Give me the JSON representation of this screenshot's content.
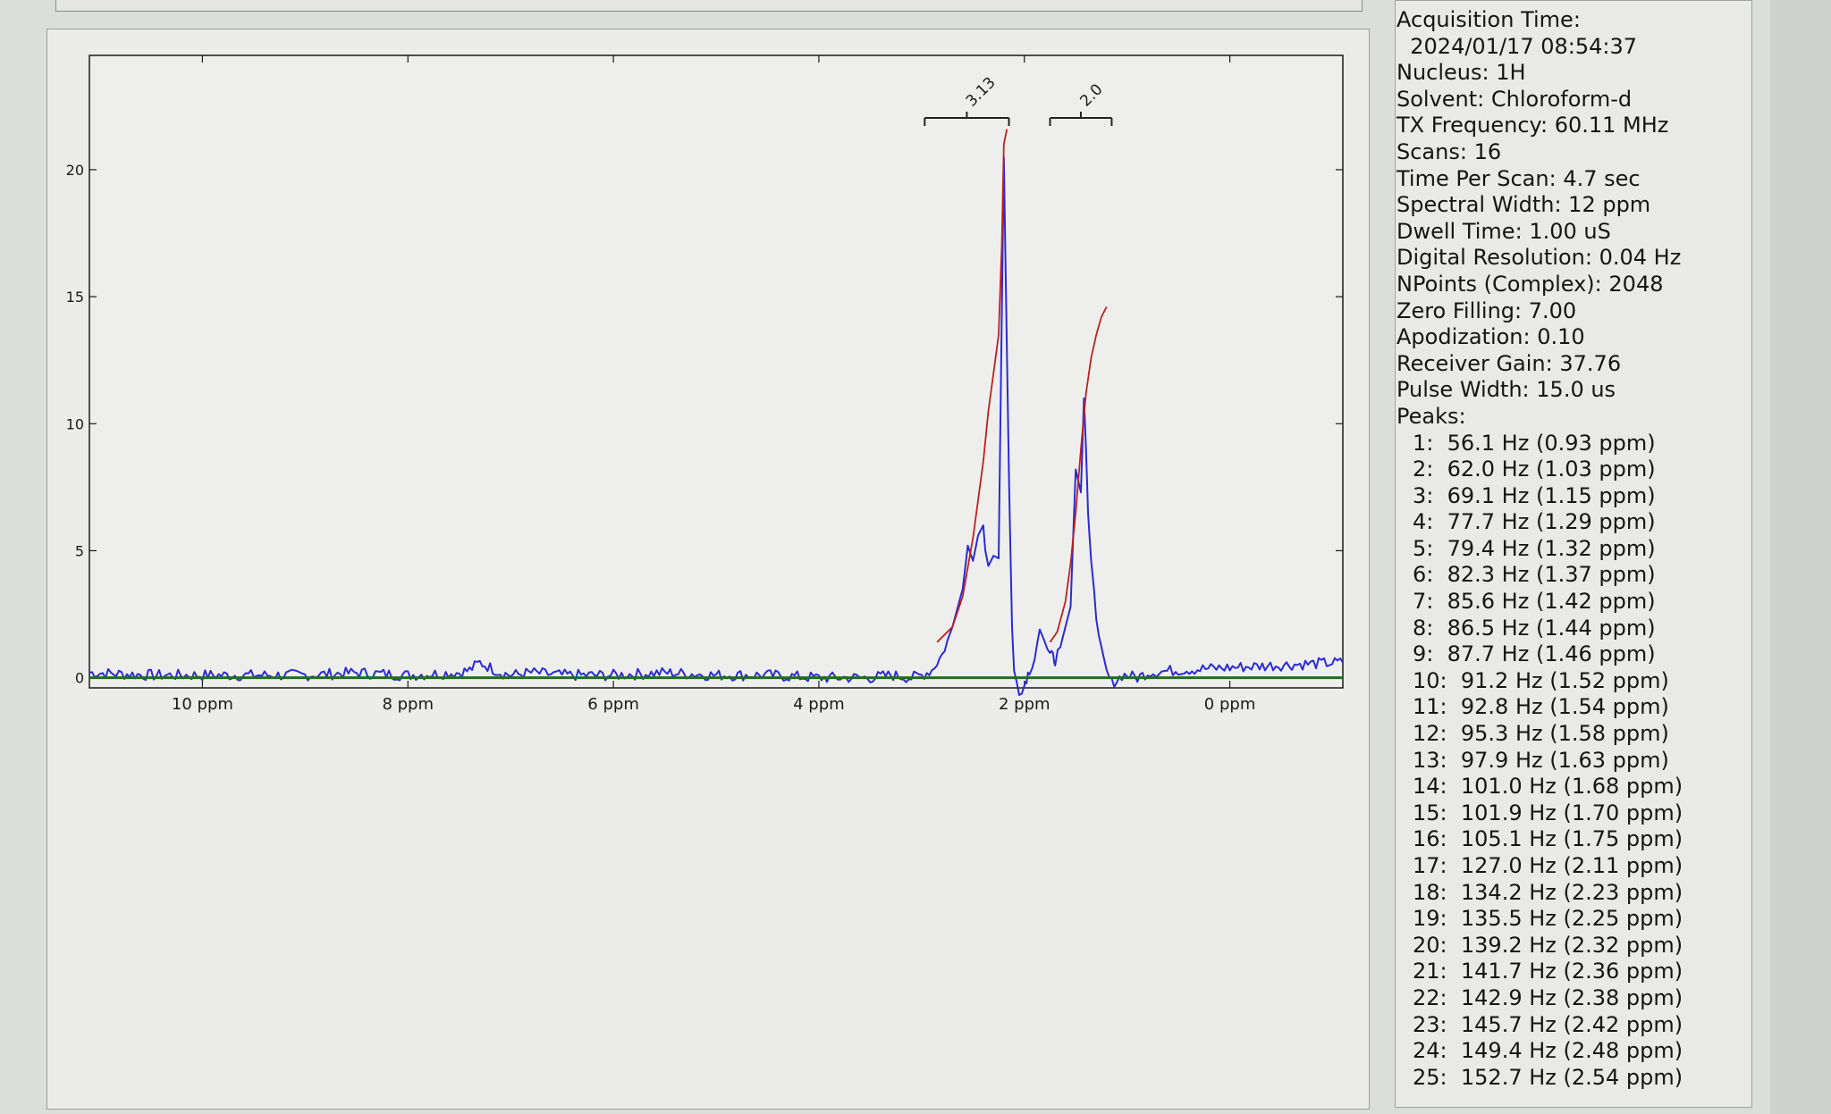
{
  "parameters": [
    {
      "label": "Acquisition Time:",
      "value": ""
    },
    {
      "label": "",
      "value": "2024/01/17 08:54:37"
    },
    {
      "label": "Nucleus:",
      "value": "1H"
    },
    {
      "label": "Solvent:",
      "value": "Chloroform-d"
    },
    {
      "label": "TX Frequency:",
      "value": "60.11 MHz"
    },
    {
      "label": "Scans:",
      "value": "16"
    },
    {
      "label": "Time Per Scan:",
      "value": "4.7 sec"
    },
    {
      "label": "Spectral Width:",
      "value": "12 ppm"
    },
    {
      "label": "Dwell Time:",
      "value": "1.00 uS"
    },
    {
      "label": "Digital Resolution:",
      "value": "0.04 Hz"
    },
    {
      "label": "NPoints (Complex):",
      "value": "2048"
    },
    {
      "label": "Zero Filling:",
      "value": "7.00"
    },
    {
      "label": "Apodization:",
      "value": "0.10"
    },
    {
      "label": "Receiver Gain:",
      "value": "37.76"
    },
    {
      "label": "Pulse Width:",
      "value": "15.0 us"
    }
  ],
  "peaks_label": "Peaks:",
  "peaks": [
    "1:  56.1 Hz (0.93 ppm)",
    "2:  62.0 Hz (1.03 ppm)",
    "3:  69.1 Hz (1.15 ppm)",
    "4:  77.7 Hz (1.29 ppm)",
    "5:  79.4 Hz (1.32 ppm)",
    "6:  82.3 Hz (1.37 ppm)",
    "7:  85.6 Hz (1.42 ppm)",
    "8:  86.5 Hz (1.44 ppm)",
    "9:  87.7 Hz (1.46 ppm)",
    "10:  91.2 Hz (1.52 ppm)",
    "11:  92.8 Hz (1.54 ppm)",
    "12:  95.3 Hz (1.58 ppm)",
    "13:  97.9 Hz (1.63 ppm)",
    "14:  101.0 Hz (1.68 ppm)",
    "15:  101.9 Hz (1.70 ppm)",
    "16:  105.1 Hz (1.75 ppm)",
    "17:  127.0 Hz (2.11 ppm)",
    "18:  134.2 Hz (2.23 ppm)",
    "19:  135.5 Hz (2.25 ppm)",
    "20:  139.2 Hz (2.32 ppm)",
    "21:  141.7 Hz (2.36 ppm)",
    "22:  142.9 Hz (2.38 ppm)",
    "23:  145.7 Hz (2.42 ppm)",
    "24:  149.4 Hz (2.48 ppm)",
    "25:  152.7 Hz (2.54 ppm)"
  ],
  "chart_data": {
    "type": "line",
    "title": "",
    "xlabel": "",
    "ylabel": "",
    "x_reversed": true,
    "xlim": [
      -1.1,
      11.1
    ],
    "ylim": [
      -0.4,
      24.5
    ],
    "x_ticks": [
      10,
      8,
      6,
      4,
      2,
      0
    ],
    "x_tick_labels": [
      "10 ppm",
      "8 ppm",
      "6 ppm",
      "4 ppm",
      "2 ppm",
      "0 ppm"
    ],
    "y_ticks": [
      0,
      5,
      10,
      15,
      20
    ],
    "y_tick_labels": [
      "0",
      "5",
      "10",
      "15",
      "20"
    ],
    "grid": false,
    "colors": {
      "spectrum": "#2a2ad6",
      "integral": "#c0201c",
      "baseline": "#1f6e1f",
      "integral_bracket": "#222222"
    },
    "series": [
      {
        "role": "spectrum",
        "x": [
          11.1,
          10.5,
          10,
          9.5,
          9,
          8.5,
          8,
          7.5,
          7.4,
          7.3,
          7.2,
          7.1,
          7.0,
          6.8,
          6.5,
          6,
          5.5,
          5,
          4.5,
          4,
          3.5,
          3.3,
          3.1,
          3.0,
          2.9,
          2.8,
          2.7,
          2.6,
          2.55,
          2.5,
          2.45,
          2.4,
          2.38,
          2.35,
          2.3,
          2.25,
          2.2,
          2.15,
          2.12,
          2.1,
          2.05,
          2.0,
          1.98,
          1.95,
          1.9,
          1.85,
          1.8,
          1.75,
          1.72,
          1.7,
          1.65,
          1.6,
          1.55,
          1.5,
          1.45,
          1.42,
          1.4,
          1.38,
          1.35,
          1.32,
          1.3,
          1.25,
          1.2,
          1.15,
          1.1,
          1.05,
          1.0,
          0.9,
          0.8,
          0.5,
          0.0,
          -0.5,
          -1.1
        ],
        "y": [
          0.2,
          0.1,
          0.1,
          0.1,
          0.1,
          0.2,
          0.1,
          0.2,
          0.3,
          0.6,
          0.4,
          0.2,
          0.1,
          0.2,
          0.1,
          0.1,
          0.2,
          0.1,
          0.1,
          0.0,
          0.0,
          0.1,
          0.0,
          0.1,
          0.3,
          0.9,
          2.0,
          3.5,
          5.2,
          4.6,
          5.6,
          6.0,
          5.0,
          4.4,
          4.8,
          4.7,
          20.5,
          8.0,
          2.0,
          0.2,
          -0.5,
          -0.3,
          0.0,
          0.3,
          0.8,
          1.9,
          1.4,
          0.9,
          0.8,
          0.7,
          1.2,
          2.0,
          2.8,
          8.2,
          7.3,
          11.0,
          9.0,
          6.5,
          4.6,
          3.4,
          2.3,
          1.0,
          0.2,
          -0.2,
          -0.1,
          0.1,
          0.1,
          0.0,
          0.2,
          0.3,
          0.4,
          0.5,
          0.6
        ]
      },
      {
        "role": "integral",
        "x": [
          2.85,
          2.7,
          2.6,
          2.5,
          2.4,
          2.35,
          2.3,
          2.25,
          2.22,
          2.2,
          2.17
        ],
        "y": [
          1.4,
          2.0,
          3.2,
          5.5,
          8.5,
          10.5,
          12.0,
          13.5,
          17.0,
          21.0,
          21.6
        ]
      },
      {
        "role": "integral",
        "x": [
          1.75,
          1.68,
          1.6,
          1.55,
          1.5,
          1.45,
          1.4,
          1.35,
          1.3,
          1.25,
          1.2
        ],
        "y": [
          1.4,
          1.8,
          3.0,
          4.5,
          6.5,
          9.0,
          11.2,
          12.6,
          13.5,
          14.2,
          14.6
        ]
      },
      {
        "role": "baseline",
        "x": [
          11.1,
          -1.1
        ],
        "y": [
          0.0,
          0.0
        ]
      }
    ],
    "integrals": [
      {
        "label": "3.13",
        "x_start": 2.97,
        "x_end": 2.15
      },
      {
        "label": "2.0",
        "x_start": 1.75,
        "x_end": 1.15
      }
    ]
  }
}
